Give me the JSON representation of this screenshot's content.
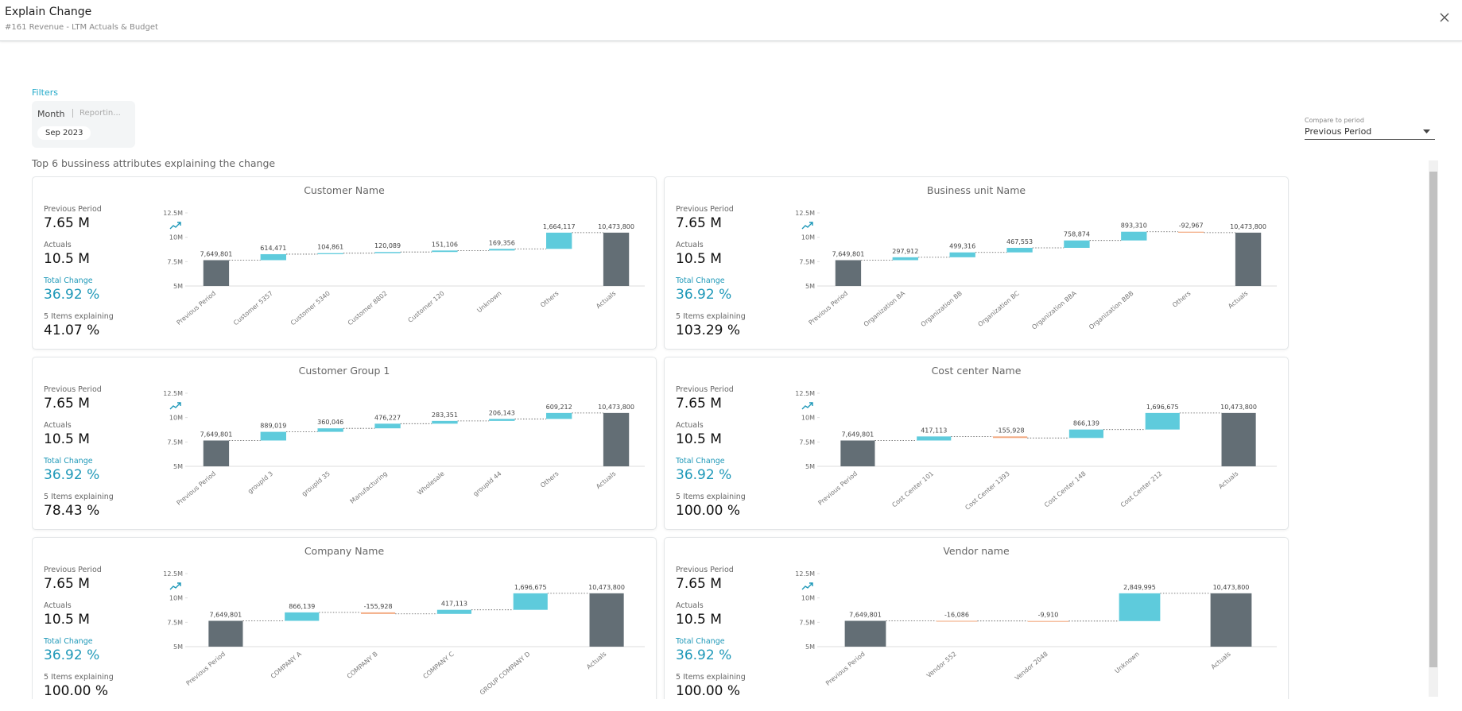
{
  "header": {
    "title": "Explain Change",
    "subtitle": "#161 Revenue - LTM Actuals & Budget"
  },
  "filters": {
    "label": "Filters",
    "field": "Month",
    "field_hint": "Reportin...",
    "chip": "Sep 2023"
  },
  "compare": {
    "label": "Compare to period",
    "value": "Previous Period"
  },
  "section_title": "Top 6 bussiness attributes explaining the change",
  "panels": [
    {
      "title": "Customer Name",
      "stats": [
        {
          "label": "Previous Period",
          "value": "7.65 M"
        },
        {
          "label": "Actuals",
          "value": "10.5 M"
        },
        {
          "label": "Total Change",
          "value": "36.92 %"
        },
        {
          "label": "5 Items explaining",
          "value": "41.07 %"
        }
      ],
      "chart": {
        "type": "waterfall",
        "categories": [
          "Previous Period",
          "Customer 5357",
          "Customer 5340",
          "Customer 8802",
          "Customer 120",
          "Unknown",
          "Others",
          "Actuals"
        ],
        "values": [
          7649801,
          614471,
          104861,
          120089,
          151106,
          169356,
          1664117,
          10473800
        ],
        "value_labels": [
          "7,649,801",
          "614,471",
          "104,861",
          "120,089",
          "151,106",
          "169,356",
          "1,664,117",
          "10,473,800"
        ],
        "ylim": [
          5000000,
          12500000
        ],
        "yticks": [
          {
            "value": 5000000,
            "label": "5M"
          },
          {
            "value": 7500000,
            "label": "7.5M"
          },
          {
            "value": 10000000,
            "label": "10M"
          },
          {
            "value": 12500000,
            "label": "12.5M"
          }
        ],
        "total_color": "#636e75",
        "increase_color": "#5ecbdc",
        "decrease_color": "#f2a57a"
      }
    },
    {
      "title": "Business unit Name",
      "stats": [
        {
          "label": "Previous Period",
          "value": "7.65 M"
        },
        {
          "label": "Actuals",
          "value": "10.5 M"
        },
        {
          "label": "Total Change",
          "value": "36.92 %"
        },
        {
          "label": "5 Items explaining",
          "value": "103.29 %"
        }
      ],
      "chart": {
        "type": "waterfall",
        "categories": [
          "Previous Period",
          "Organization BA",
          "Organization BB",
          "Organization BC",
          "Organization BBA",
          "Organization BBB",
          "Others",
          "Actuals"
        ],
        "values": [
          7649801,
          297912,
          499316,
          467553,
          758874,
          893310,
          -92967,
          10473800
        ],
        "value_labels": [
          "7,649,801",
          "297,912",
          "499,316",
          "467,553",
          "758,874",
          "893,310",
          "-92,967",
          "10,473,800"
        ],
        "ylim": [
          5000000,
          12500000
        ],
        "yticks": [
          {
            "value": 5000000,
            "label": "5M"
          },
          {
            "value": 7500000,
            "label": "7.5M"
          },
          {
            "value": 10000000,
            "label": "10M"
          },
          {
            "value": 12500000,
            "label": "12.5M"
          }
        ],
        "total_color": "#636e75",
        "increase_color": "#5ecbdc",
        "decrease_color": "#f2a57a"
      }
    },
    {
      "title": "Customer Group 1",
      "stats": [
        {
          "label": "Previous Period",
          "value": "7.65 M"
        },
        {
          "label": "Actuals",
          "value": "10.5 M"
        },
        {
          "label": "Total Change",
          "value": "36.92 %"
        },
        {
          "label": "5 Items explaining",
          "value": "78.43 %"
        }
      ],
      "chart": {
        "type": "waterfall",
        "categories": [
          "Previous Period",
          "groupId 3",
          "groupId 35",
          "Manufacturing",
          "Wholesale",
          "groupId 44",
          "Others",
          "Actuals"
        ],
        "values": [
          7649801,
          889019,
          360046,
          476227,
          283351,
          206143,
          609212,
          10473800
        ],
        "value_labels": [
          "7,649,801",
          "889,019",
          "360,046",
          "476,227",
          "283,351",
          "206,143",
          "609,212",
          "10,473,800"
        ],
        "ylim": [
          5000000,
          12500000
        ],
        "yticks": [
          {
            "value": 5000000,
            "label": "5M"
          },
          {
            "value": 7500000,
            "label": "7.5M"
          },
          {
            "value": 10000000,
            "label": "10M"
          },
          {
            "value": 12500000,
            "label": "12.5M"
          }
        ],
        "total_color": "#636e75",
        "increase_color": "#5ecbdc",
        "decrease_color": "#f2a57a"
      }
    },
    {
      "title": "Cost center Name",
      "stats": [
        {
          "label": "Previous Period",
          "value": "7.65 M"
        },
        {
          "label": "Actuals",
          "value": "10.5 M"
        },
        {
          "label": "Total Change",
          "value": "36.92 %"
        },
        {
          "label": "5 Items explaining",
          "value": "100.00 %"
        }
      ],
      "chart": {
        "type": "waterfall",
        "categories": [
          "Previous Period",
          "Cost Center 101",
          "Cost Center 1393",
          "Cost Center 148",
          "Cost Center 212",
          "Actuals"
        ],
        "values": [
          7649801,
          417113,
          -155928,
          866139,
          1696675,
          10473800
        ],
        "value_labels": [
          "7,649,801",
          "417,113",
          "-155,928",
          "866,139",
          "1,696,675",
          "10,473,800"
        ],
        "ylim": [
          5000000,
          12500000
        ],
        "yticks": [
          {
            "value": 5000000,
            "label": "5M"
          },
          {
            "value": 7500000,
            "label": "7.5M"
          },
          {
            "value": 10000000,
            "label": "10M"
          },
          {
            "value": 12500000,
            "label": "12.5M"
          }
        ],
        "total_color": "#636e75",
        "increase_color": "#5ecbdc",
        "decrease_color": "#f2a57a"
      }
    },
    {
      "title": "Company Name",
      "stats": [
        {
          "label": "Previous Period",
          "value": "7.65 M"
        },
        {
          "label": "Actuals",
          "value": "10.5 M"
        },
        {
          "label": "Total Change",
          "value": "36.92 %"
        },
        {
          "label": "5 Items explaining",
          "value": "100.00 %"
        }
      ],
      "chart": {
        "type": "waterfall",
        "categories": [
          "Previous Period",
          "COMPANY A",
          "COMPANY B",
          "COMPANY C",
          "GROUP COMPANY D",
          "Actuals"
        ],
        "values": [
          7649801,
          866139,
          -155928,
          417113,
          1696675,
          10473800
        ],
        "value_labels": [
          "7,649,801",
          "866,139",
          "-155,928",
          "417,113",
          "1,696,675",
          "10,473,800"
        ],
        "ylim": [
          5000000,
          12500000
        ],
        "yticks": [
          {
            "value": 5000000,
            "label": "5M"
          },
          {
            "value": 7500000,
            "label": "7.5M"
          },
          {
            "value": 10000000,
            "label": "10M"
          },
          {
            "value": 12500000,
            "label": "12.5M"
          }
        ],
        "total_color": "#636e75",
        "increase_color": "#5ecbdc",
        "decrease_color": "#f2a57a"
      }
    },
    {
      "title": "Vendor name",
      "stats": [
        {
          "label": "Previous Period",
          "value": "7.65 M"
        },
        {
          "label": "Actuals",
          "value": "10.5 M"
        },
        {
          "label": "Total Change",
          "value": "36.92 %"
        },
        {
          "label": "5 Items explaining",
          "value": "100.00 %"
        }
      ],
      "chart": {
        "type": "waterfall",
        "categories": [
          "Previous Period",
          "Vendor 552",
          "Vendor 2048",
          "Unknown",
          "Actuals"
        ],
        "values": [
          7649801,
          -16086,
          -9910,
          2849995,
          10473800
        ],
        "value_labels": [
          "7,649,801",
          "-16,086",
          "-9,910",
          "2,849,995",
          "10,473,800"
        ],
        "ylim": [
          5000000,
          12500000
        ],
        "yticks": [
          {
            "value": 5000000,
            "label": "5M"
          },
          {
            "value": 7500000,
            "label": "7.5M"
          },
          {
            "value": 10000000,
            "label": "10M"
          },
          {
            "value": 12500000,
            "label": "12.5M"
          }
        ],
        "total_color": "#636e75",
        "increase_color": "#5ecbdc",
        "decrease_color": "#f2a57a"
      }
    }
  ]
}
